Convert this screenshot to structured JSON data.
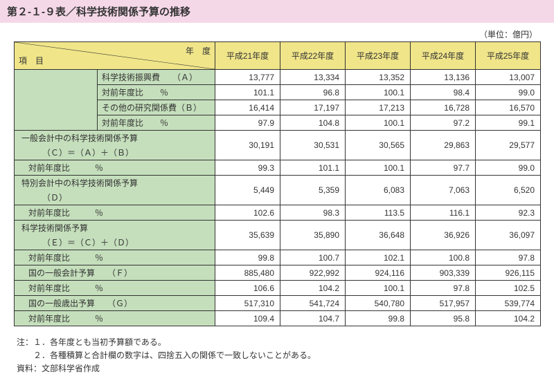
{
  "title": "第２-１-９表／科学技術関係予算の推移",
  "unit": "（単位：億円）",
  "header": {
    "corner_top": "年　度",
    "corner_bottom": "項　目",
    "years": [
      "平成21年度",
      "平成22年度",
      "平成23年度",
      "平成24年度",
      "平成25年度"
    ]
  },
  "rows": [
    {
      "label": "科学技術振興費　　（Ａ）",
      "vals": [
        "13,777",
        "13,334",
        "13,352",
        "13,136",
        "13,007"
      ]
    },
    {
      "label": "対前年度比　　％",
      "vals": [
        "101.1",
        "96.8",
        "100.1",
        "98.4",
        "99.0"
      ]
    },
    {
      "label": "その他の研究関係費（Ｂ）",
      "vals": [
        "16,414",
        "17,197",
        "17,213",
        "16,728",
        "16,570"
      ]
    },
    {
      "label": "対前年度比　　％",
      "vals": [
        "97.9",
        "104.8",
        "100.1",
        "97.2",
        "99.1"
      ]
    }
  ],
  "sections": [
    {
      "title": "一般会計中の科学技術関係予算",
      "sub": "（Ｃ）＝（Ａ）＋（Ｂ）",
      "vals": [
        "30,191",
        "30,531",
        "30,565",
        "29,863",
        "29,577"
      ],
      "ratio_label": "対前年度比　　　％",
      "ratio": [
        "99.3",
        "101.1",
        "100.1",
        "97.7",
        "99.0"
      ]
    },
    {
      "title": "特別会計中の科学技術関係予算",
      "sub": "（Ｄ）",
      "vals": [
        "5,449",
        "5,359",
        "6,083",
        "7,063",
        "6,520"
      ],
      "ratio_label": "対前年度比　　　％",
      "ratio": [
        "102.6",
        "98.3",
        "113.5",
        "116.1",
        "92.3"
      ]
    },
    {
      "title": "科学技術関係予算",
      "sub": "（Ｅ）＝（Ｃ）＋（Ｄ）",
      "vals": [
        "35,639",
        "35,890",
        "36,648",
        "36,926",
        "36,097"
      ],
      "ratio_label": "対前年度比　　　％",
      "ratio": [
        "99.8",
        "100.7",
        "102.1",
        "100.8",
        "97.8"
      ]
    }
  ],
  "bottom_rows": [
    {
      "label": "国の一般会計予算　　（Ｆ）",
      "vals": [
        "885,480",
        "922,992",
        "924,116",
        "903,339",
        "926,115"
      ]
    },
    {
      "label": "対前年度比　　　％",
      "vals": [
        "106.6",
        "104.2",
        "100.1",
        "97.8",
        "102.5"
      ]
    },
    {
      "label": "国の一般歳出予算　　（Ｇ）",
      "vals": [
        "517,310",
        "541,724",
        "540,780",
        "517,957",
        "539,774"
      ]
    },
    {
      "label": "対前年度比　　　％",
      "vals": [
        "109.4",
        "104.7",
        "99.8",
        "95.8",
        "104.2"
      ]
    }
  ],
  "notes": [
    "注：１．各年度とも当初予算額である。",
    "　　２．各種積算と合計欄の数字は、四捨五入の関係で一致しないことがある。",
    "資料：文部科学省作成"
  ]
}
